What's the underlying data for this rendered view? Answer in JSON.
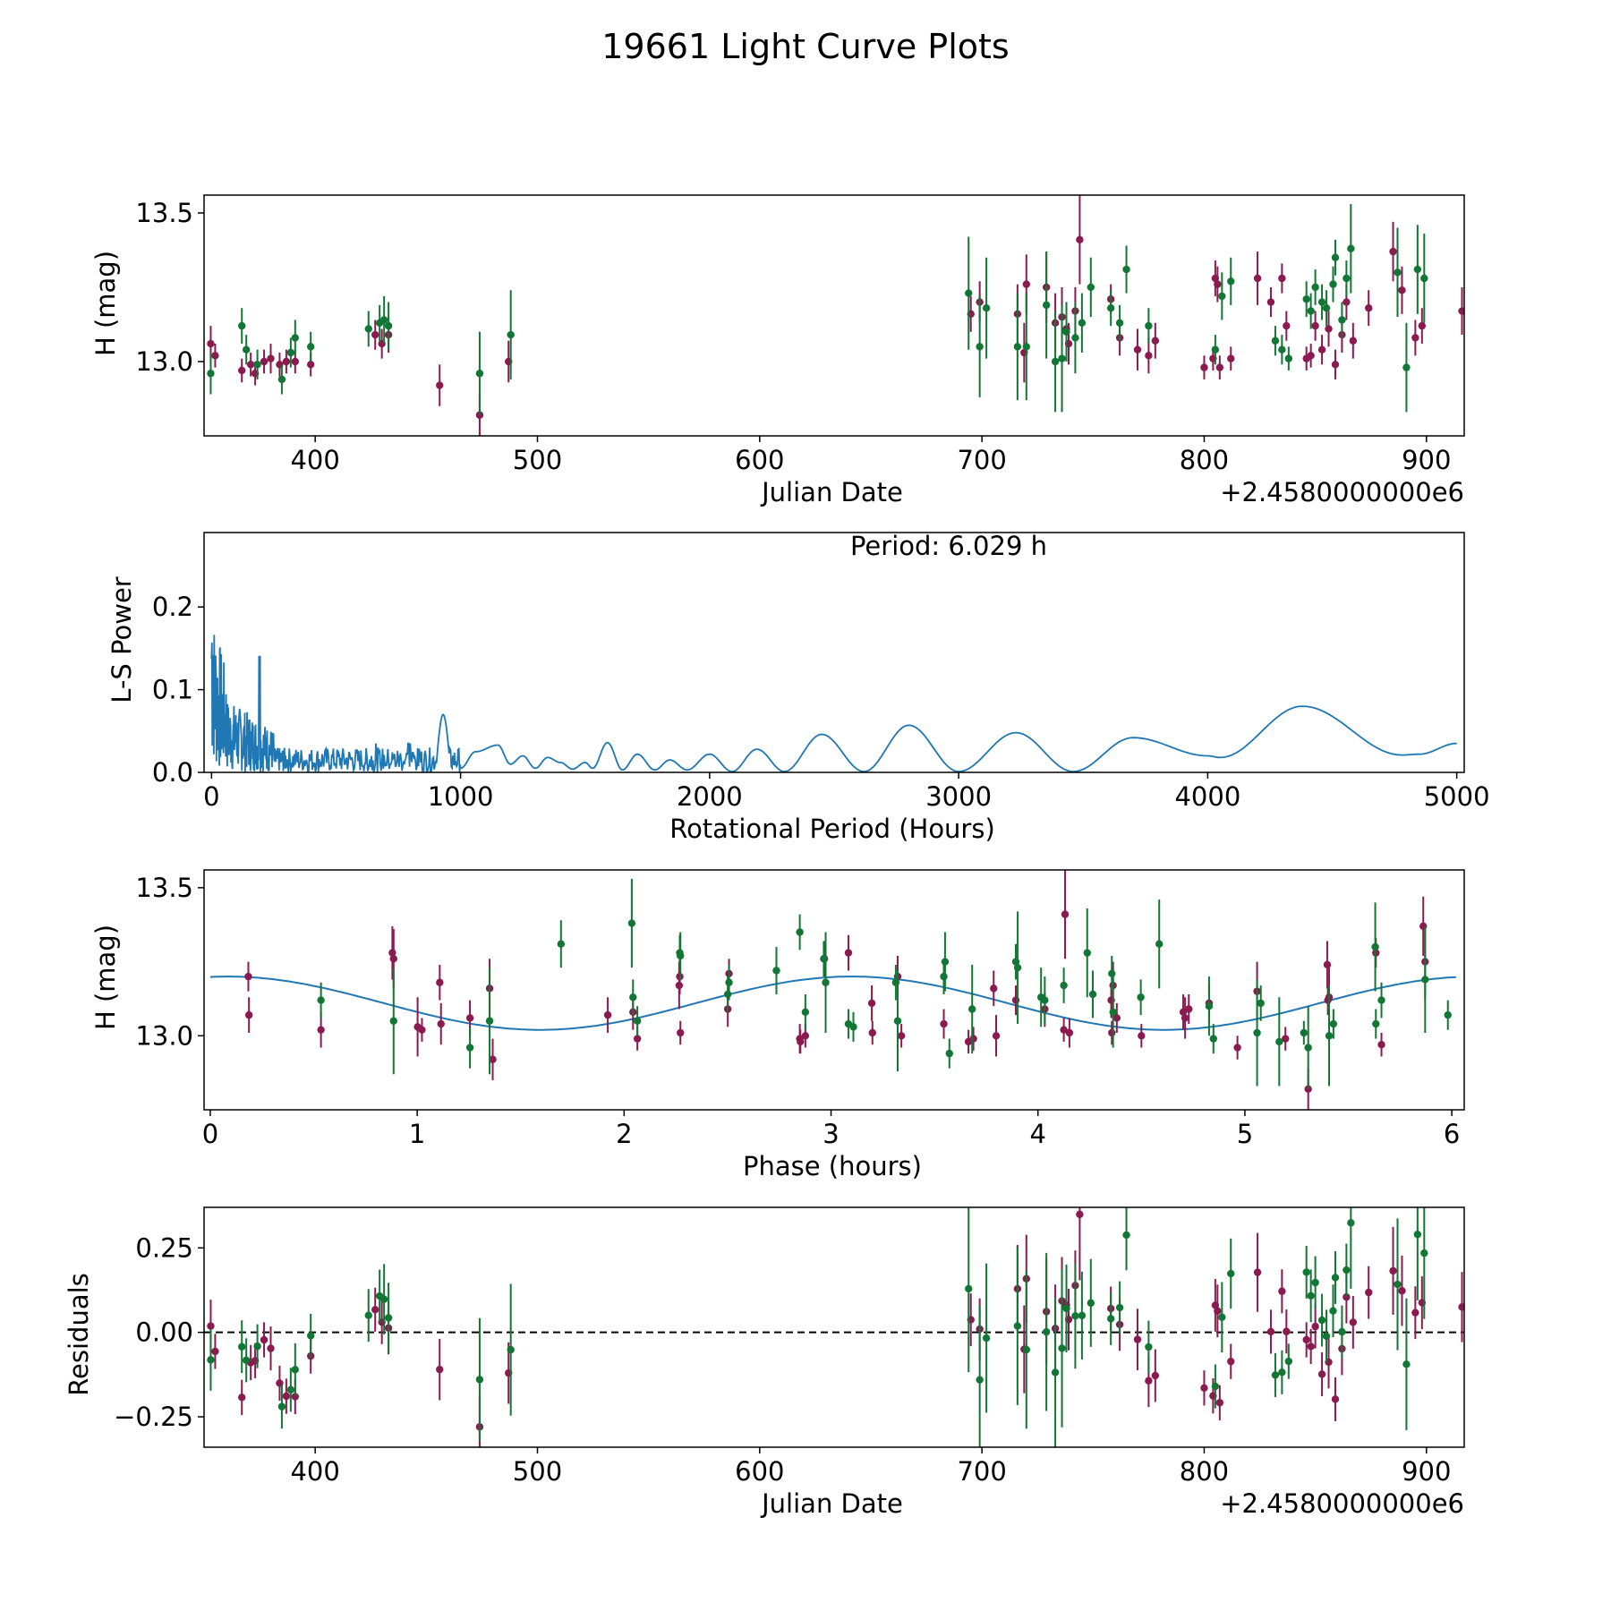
{
  "title": "19661 Light Curve Plots",
  "colors": {
    "filter_o": "#8b1a50",
    "filter_c": "#127634",
    "model": "#1f77b4",
    "axes": "#000000"
  },
  "chart_data": [
    {
      "type": "scatter",
      "name": "light-curve",
      "xlabel": "Julian Date",
      "ylabel": "H (mag)",
      "offset_label": "+2.4580000000e6",
      "xlim": [
        350,
        917
      ],
      "ylim": [
        12.75,
        13.56
      ],
      "xticks": [
        "400",
        "500",
        "600",
        "700",
        "800",
        "900"
      ],
      "xtick_values": [
        400,
        500,
        600,
        700,
        800,
        900
      ],
      "yticks": [
        "13.0",
        "13.5"
      ],
      "ytick_values": [
        13.0,
        13.5
      ],
      "series": [
        {
          "name": "filter-o",
          "color": "#8b1a50",
          "points": [
            [
              353,
              13.06,
              0.06
            ],
            [
              355,
              13.02,
              0.04
            ],
            [
              367,
              12.97,
              0.04
            ],
            [
              371,
              12.99,
              0.04
            ],
            [
              373,
              12.96,
              0.04
            ],
            [
              377,
              13.0,
              0.04
            ],
            [
              380,
              13.01,
              0.05
            ],
            [
              384,
              12.99,
              0.04
            ],
            [
              387,
              13.0,
              0.04
            ],
            [
              391,
              13.0,
              0.04
            ],
            [
              398,
              12.99,
              0.04
            ],
            [
              427,
              13.09,
              0.05
            ],
            [
              430,
              13.06,
              0.05
            ],
            [
              433,
              13.09,
              0.06
            ],
            [
              456,
              12.92,
              0.07
            ],
            [
              474,
              12.82,
              0.07
            ],
            [
              487,
              13.0,
              0.07
            ],
            [
              695,
              13.16,
              0.06
            ],
            [
              699,
              13.2,
              0.07
            ],
            [
              716,
              13.16,
              0.1
            ],
            [
              719,
              13.03,
              0.1
            ],
            [
              720,
              13.26,
              0.1
            ],
            [
              729,
              13.25,
              0.12
            ],
            [
              733,
              13.13,
              0.1
            ],
            [
              736,
              13.15,
              0.1
            ],
            [
              738,
              13.11,
              0.07
            ],
            [
              739,
              13.06,
              0.07
            ],
            [
              742,
              13.17,
              0.08
            ],
            [
              744,
              13.41,
              0.15
            ],
            [
              758,
              13.21,
              0.05
            ],
            [
              762,
              13.08,
              0.06
            ],
            [
              770,
              13.04,
              0.07
            ],
            [
              775,
              13.02,
              0.06
            ],
            [
              778,
              13.07,
              0.06
            ],
            [
              800,
              12.98,
              0.04
            ],
            [
              804,
              13.01,
              0.04
            ],
            [
              805,
              13.28,
              0.06
            ],
            [
              806,
              13.26,
              0.06
            ],
            [
              807,
              12.98,
              0.04
            ],
            [
              812,
              13.01,
              0.04
            ],
            [
              824,
              13.28,
              0.09
            ],
            [
              830,
              13.2,
              0.05
            ],
            [
              835,
              13.28,
              0.05
            ],
            [
              837,
              13.12,
              0.05
            ],
            [
              846,
              13.01,
              0.04
            ],
            [
              848,
              13.02,
              0.04
            ],
            [
              850,
              13.12,
              0.05
            ],
            [
              853,
              13.04,
              0.05
            ],
            [
              856,
              13.11,
              0.06
            ],
            [
              859,
              12.99,
              0.05
            ],
            [
              862,
              13.09,
              0.06
            ],
            [
              864,
              13.2,
              0.06
            ],
            [
              867,
              13.07,
              0.06
            ],
            [
              874,
              13.18,
              0.06
            ],
            [
              885,
              13.37,
              0.1
            ],
            [
              889,
              13.24,
              0.08
            ],
            [
              895,
              13.08,
              0.06
            ],
            [
              898,
              13.12,
              0.06
            ],
            [
              916,
              13.17,
              0.08
            ]
          ]
        },
        {
          "name": "filter-c",
          "color": "#127634",
          "points": [
            [
              353,
              12.96,
              0.07
            ],
            [
              367,
              13.12,
              0.06
            ],
            [
              369,
              13.04,
              0.05
            ],
            [
              374,
              12.99,
              0.05
            ],
            [
              385,
              12.94,
              0.05
            ],
            [
              389,
              13.03,
              0.05
            ],
            [
              391,
              13.08,
              0.06
            ],
            [
              398,
              13.05,
              0.05
            ],
            [
              424,
              13.11,
              0.06
            ],
            [
              429,
              13.13,
              0.06
            ],
            [
              431,
              13.14,
              0.08
            ],
            [
              433,
              13.12,
              0.08
            ],
            [
              474,
              12.96,
              0.14
            ],
            [
              488,
              13.09,
              0.15
            ],
            [
              694,
              13.23,
              0.19
            ],
            [
              699,
              13.05,
              0.17
            ],
            [
              702,
              13.18,
              0.17
            ],
            [
              716,
              13.05,
              0.18
            ],
            [
              720,
              13.05,
              0.18
            ],
            [
              729,
              13.19,
              0.18
            ],
            [
              733,
              13.0,
              0.17
            ],
            [
              736,
              13.01,
              0.18
            ],
            [
              738,
              13.1,
              0.1
            ],
            [
              742,
              13.08,
              0.12
            ],
            [
              745,
              13.13,
              0.1
            ],
            [
              749,
              13.25,
              0.1
            ],
            [
              758,
              13.18,
              0.06
            ],
            [
              762,
              13.13,
              0.06
            ],
            [
              765,
              13.31,
              0.08
            ],
            [
              775,
              13.12,
              0.06
            ],
            [
              805,
              13.04,
              0.05
            ],
            [
              808,
              13.22,
              0.08
            ],
            [
              812,
              13.27,
              0.08
            ],
            [
              832,
              13.07,
              0.05
            ],
            [
              835,
              13.04,
              0.05
            ],
            [
              838,
              13.01,
              0.04
            ],
            [
              846,
              13.21,
              0.06
            ],
            [
              848,
              13.17,
              0.06
            ],
            [
              850,
              13.25,
              0.06
            ],
            [
              853,
              13.2,
              0.06
            ],
            [
              855,
              13.18,
              0.06
            ],
            [
              858,
              13.26,
              0.06
            ],
            [
              859,
              13.35,
              0.06
            ],
            [
              862,
              13.14,
              0.06
            ],
            [
              864,
              13.28,
              0.06
            ],
            [
              866,
              13.38,
              0.15
            ],
            [
              887,
              13.3,
              0.15
            ],
            [
              891,
              12.98,
              0.15
            ],
            [
              896,
              13.31,
              0.15
            ],
            [
              899,
              13.28,
              0.15
            ]
          ]
        }
      ]
    },
    {
      "type": "line",
      "name": "periodogram",
      "xlabel": "Rotational Period (Hours)",
      "ylabel": "L-S Power",
      "annotation": "Period: 6.029 h",
      "xlim": [
        -30,
        5030
      ],
      "ylim": [
        0,
        0.29
      ],
      "xticks": [
        "0",
        "1000",
        "2000",
        "3000",
        "4000",
        "5000"
      ],
      "xtick_values": [
        0,
        1000,
        2000,
        3000,
        4000,
        5000
      ],
      "yticks": [
        "0.0",
        "0.1",
        "0.2"
      ],
      "ytick_values": [
        0,
        0.1,
        0.2
      ],
      "peaks": [
        [
          1000,
          0.005
        ],
        [
          1060,
          0.025
        ],
        [
          1150,
          0.033
        ],
        [
          1200,
          0.01
        ],
        [
          1250,
          0.02
        ],
        [
          1300,
          0.005
        ],
        [
          1350,
          0.018
        ],
        [
          1400,
          0.012
        ],
        [
          1450,
          0.004
        ],
        [
          1500,
          0.012
        ],
        [
          1530,
          0.005
        ],
        [
          1590,
          0.036
        ],
        [
          1650,
          0.003
        ],
        [
          1710,
          0.022
        ],
        [
          1780,
          0.003
        ],
        [
          1840,
          0.015
        ],
        [
          1910,
          0.003
        ],
        [
          2000,
          0.022
        ],
        [
          2090,
          0.001
        ],
        [
          2190,
          0.028
        ],
        [
          2300,
          0.001
        ],
        [
          2450,
          0.046
        ],
        [
          2620,
          0.001
        ],
        [
          2800,
          0.057
        ],
        [
          3000,
          0.001
        ],
        [
          3230,
          0.048
        ],
        [
          3460,
          0.001
        ],
        [
          3700,
          0.042
        ],
        [
          4000,
          0.02
        ],
        [
          4050,
          0.018
        ],
        [
          4380,
          0.08
        ],
        [
          4780,
          0.021
        ],
        [
          4850,
          0.022
        ],
        [
          5000,
          0.035
        ]
      ]
    },
    {
      "type": "scatter",
      "name": "phased-curve",
      "xlabel": "Phase (hours)",
      "ylabel": "H (mag)",
      "xlim": [
        -0.03,
        6.06
      ],
      "ylim": [
        12.75,
        13.56
      ],
      "xticks": [
        "0",
        "1",
        "2",
        "3",
        "4",
        "5",
        "6"
      ],
      "xtick_values": [
        0,
        1,
        2,
        3,
        4,
        5,
        6
      ],
      "yticks": [
        "13.0",
        "13.5"
      ],
      "ytick_values": [
        13.0,
        13.5
      ],
      "model": {
        "period": 6.029,
        "mean": 13.11,
        "amplitude": 0.09,
        "phase_of_max": 3.1
      }
    },
    {
      "type": "scatter",
      "name": "residuals",
      "xlabel": "Julian Date",
      "ylabel": "Residuals",
      "offset_label": "+2.4580000000e6",
      "xlim": [
        350,
        917
      ],
      "ylim": [
        -0.34,
        0.37
      ],
      "xticks": [
        "400",
        "500",
        "600",
        "700",
        "800",
        "900"
      ],
      "xtick_values": [
        400,
        500,
        600,
        700,
        800,
        900
      ],
      "yticks": [
        "−0.25",
        "0.00",
        "0.25"
      ],
      "ytick_values": [
        -0.25,
        0,
        0.25
      ],
      "zero_line": true
    }
  ]
}
